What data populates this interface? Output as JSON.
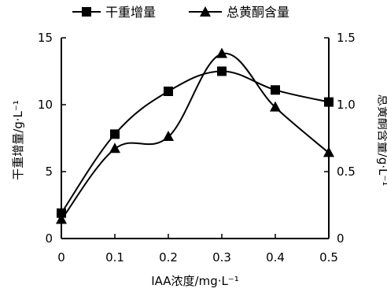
{
  "chart_data": {
    "type": "line",
    "xlabel": "IAA浓度/mg·L⁻¹",
    "ylabel_left": "干重增量/g·L⁻¹",
    "ylabel_right": "总黄酮含量/g·L⁻¹",
    "x_ticks": [
      "0",
      "0.1",
      "0.2",
      "0.3",
      "0.4",
      "0.5"
    ],
    "y_left_ticks": [
      "0",
      "5",
      "10",
      "15"
    ],
    "y_right_ticks": [
      "0",
      "0.5",
      "1.0",
      "1.5"
    ],
    "xlim": [
      0,
      0.5
    ],
    "ylim_left": [
      0,
      15
    ],
    "ylim_right": [
      0,
      1.5
    ],
    "grid": false,
    "legend_position": "top",
    "series": [
      {
        "name": "干重增量",
        "axis": "left",
        "marker": "square",
        "color": "#000000",
        "x": [
          0,
          0.1,
          0.2,
          0.3,
          0.4,
          0.5
        ],
        "values": [
          1.9,
          7.8,
          11.0,
          12.5,
          11.1,
          10.2
        ]
      },
      {
        "name": "总黄酮含量",
        "axis": "right",
        "marker": "triangle",
        "color": "#000000",
        "x": [
          0,
          0.1,
          0.2,
          0.3,
          0.4,
          0.5
        ],
        "values": [
          0.14,
          0.67,
          0.76,
          1.38,
          0.98,
          0.64
        ]
      }
    ]
  }
}
